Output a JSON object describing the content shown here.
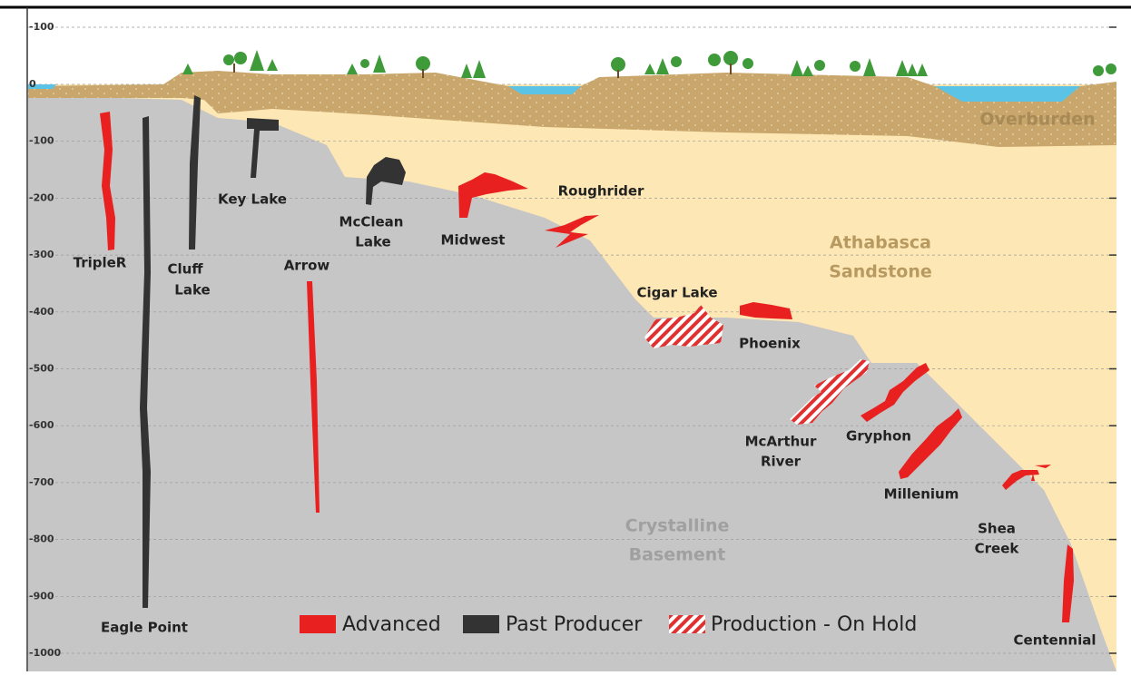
{
  "depth_ticks": [
    -100,
    0,
    -100,
    -200,
    -300,
    -400,
    -500,
    -600,
    -700,
    -800,
    -900,
    -1000
  ],
  "regions": {
    "overburden": "Overburden",
    "sandstone": [
      "Athabasca",
      "Sandstone"
    ],
    "basement": [
      "Crystalline",
      "Basement"
    ]
  },
  "deposits": [
    {
      "label": [
        "TripleR"
      ]
    },
    {
      "label": [
        "Eagle Point"
      ]
    },
    {
      "label": [
        "Cluff",
        "Lake"
      ]
    },
    {
      "label": [
        "Key Lake"
      ]
    },
    {
      "label": [
        "Arrow"
      ]
    },
    {
      "label": [
        "McClean",
        "Lake"
      ]
    },
    {
      "label": [
        "Midwest"
      ]
    },
    {
      "label": [
        "Roughrider"
      ]
    },
    {
      "label": [
        "Cigar Lake"
      ]
    },
    {
      "label": [
        "Phoenix"
      ]
    },
    {
      "label": [
        "McArthur",
        "River"
      ]
    },
    {
      "label": [
        "Gryphon"
      ]
    },
    {
      "label": [
        "Millenium"
      ]
    },
    {
      "label": [
        "Shea",
        "Creek"
      ]
    },
    {
      "label": [
        "Centennial"
      ]
    }
  ],
  "legend": [
    "Advanced",
    "Past Producer",
    "Production - On Hold"
  ]
}
